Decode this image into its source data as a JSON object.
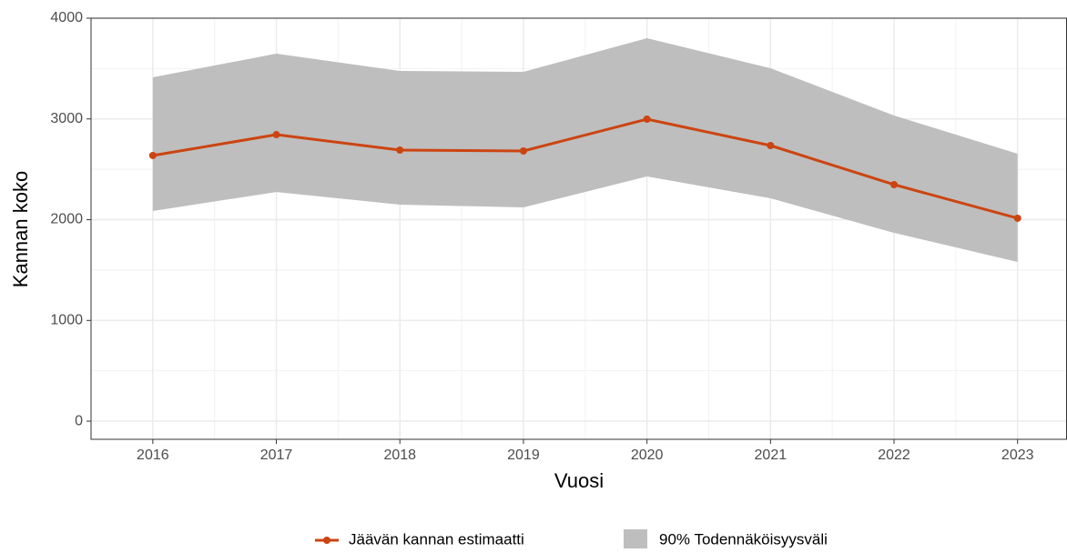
{
  "chart_data": {
    "type": "line",
    "x_label": "Vuosi",
    "y_label": "Kannan koko",
    "x": [
      2016,
      2017,
      2018,
      2019,
      2020,
      2021,
      2022,
      2023
    ],
    "series": [
      {
        "name": "Jäävän kannan estimaatti",
        "color": "#cc4411",
        "values": [
          2637,
          2844,
          2691,
          2682,
          2998,
          2736,
          2348,
          2014
        ]
      }
    ],
    "band": {
      "name": "90% Todennäköisyysväli",
      "color": "#bebebe",
      "upper": [
        3413,
        3648,
        3476,
        3467,
        3801,
        3503,
        3034,
        2655
      ],
      "lower": [
        2086,
        2275,
        2149,
        2122,
        2429,
        2212,
        1869,
        1580
      ]
    },
    "xlim": [
      2015.5,
      2023.4
    ],
    "ylim": [
      -180,
      4000
    ],
    "xticks": [
      2016,
      2017,
      2018,
      2019,
      2020,
      2021,
      2022,
      2023
    ],
    "yticks": [
      0,
      1000,
      2000,
      3000,
      4000
    ],
    "grid": true,
    "legend_position": "bottom"
  }
}
